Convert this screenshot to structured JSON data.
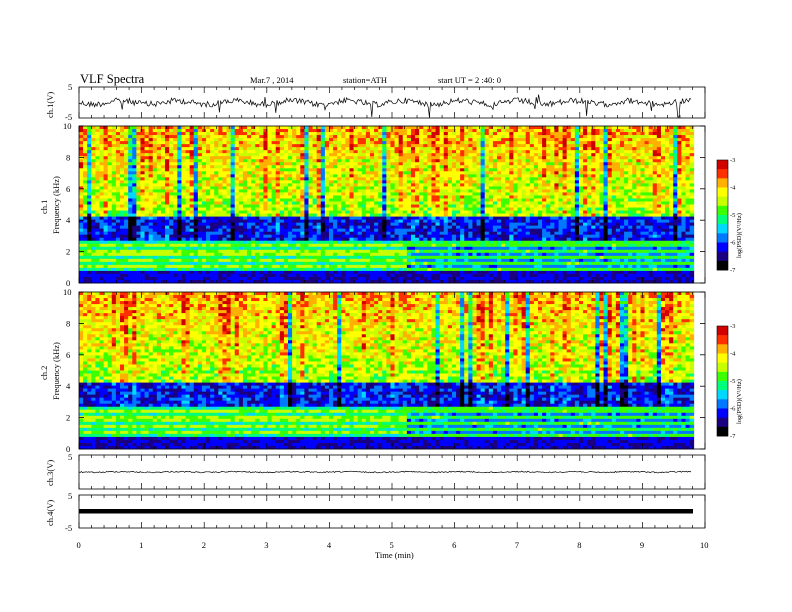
{
  "header": {
    "title": "VLF Spectra",
    "date": "Mar.7 , 2014",
    "station": "station=ATH",
    "start_ut": "start UT = 2 :40: 0"
  },
  "colors": {
    "scale": [
      "#000000",
      "#1a0080",
      "#0000ff",
      "#0078ff",
      "#00d8ff",
      "#00ff7a",
      "#3cff00",
      "#c8ff00",
      "#ffff00",
      "#ffb000",
      "#ff3000",
      "#d00000",
      "#ff9090",
      "#ffffff"
    ],
    "trace": "#000000"
  },
  "chart_data": [
    {
      "type": "line",
      "name": "ch1-waveform",
      "ylabel": "ch.1(V)",
      "ylim": [
        -5,
        5
      ],
      "yticks": [
        "-5",
        "5"
      ],
      "xlim": [
        0,
        10
      ],
      "description_level": "noisy waveform with spikes"
    },
    {
      "type": "heatmap",
      "name": "ch1-spectrogram",
      "ylabel_top": "ch.1",
      "ylabel": "Frequency (kHz)",
      "ylim": [
        0,
        10
      ],
      "yticks": [
        "0",
        "2",
        "4",
        "6",
        "8",
        "10"
      ],
      "xlim": [
        0,
        9.82
      ],
      "colorbar": {
        "label": "log(PSD)(V²/Hz)",
        "range": [
          -7,
          -3
        ],
        "ticks": [
          "-3",
          "-4",
          "-5",
          "-6",
          "-7"
        ]
      },
      "split_minute": 5.2
    },
    {
      "type": "heatmap",
      "name": "ch2-spectrogram",
      "ylabel_top": "ch.2",
      "ylabel": "Frequency (kHz)",
      "ylim": [
        0,
        10
      ],
      "yticks": [
        "0",
        "2",
        "4",
        "6",
        "8",
        "10"
      ],
      "xlim": [
        0,
        9.82
      ],
      "colorbar": {
        "label": "log(PSD)(V²/Hz)",
        "range": [
          -7,
          -3
        ],
        "ticks": [
          "-3",
          "-4",
          "-5",
          "-6",
          "-7"
        ]
      },
      "split_minute": 5.2
    },
    {
      "type": "line",
      "name": "ch3-waveform",
      "ylabel": "ch.3(V)",
      "ylim": [
        -5,
        5
      ],
      "yticks": [
        "5"
      ],
      "xlim": [
        0,
        10
      ]
    },
    {
      "type": "line",
      "name": "ch4-waveform",
      "ylabel": "ch.4(V)",
      "ylim": [
        -5,
        5
      ],
      "yticks": [
        "-5",
        "5"
      ],
      "xlim": [
        0,
        10
      ],
      "xlabel": "Time (min)",
      "xticks": [
        "0",
        "1",
        "2",
        "3",
        "4",
        "5",
        "6",
        "7",
        "8",
        "9",
        "10"
      ]
    }
  ]
}
